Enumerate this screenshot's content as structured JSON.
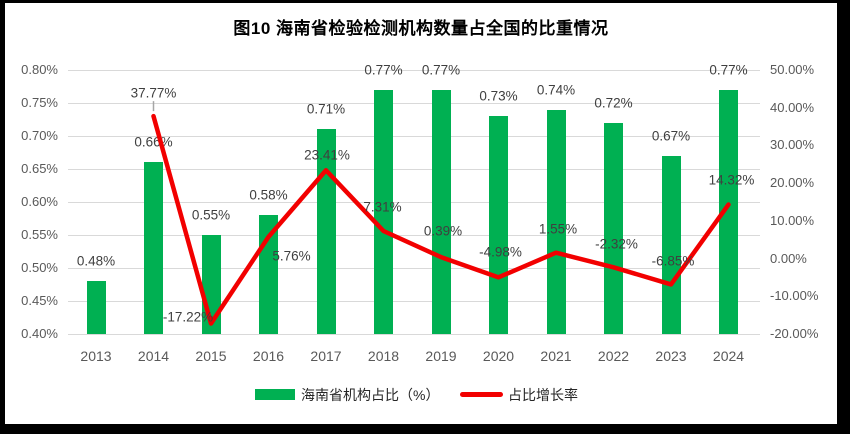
{
  "title": "图10  海南省检验检测机构数量占全国的比重情况",
  "legend": {
    "items": [
      {
        "label": "海南省机构占比（%）",
        "type": "bar"
      },
      {
        "label": "占比增长率",
        "type": "line"
      }
    ]
  },
  "colors": {
    "bar": "#00b052",
    "line": "#f20000",
    "grid": "#d9d9d9",
    "axis_text": "#595959",
    "data_label": "#3f3f3f",
    "leader": "#a6a6a6",
    "frame": "#000000"
  },
  "chart_data": {
    "type": "bar+line",
    "title": "图10  海南省检验检测机构数量占全国的比重情况",
    "categories": [
      "2013",
      "2014",
      "2015",
      "2016",
      "2017",
      "2018",
      "2019",
      "2020",
      "2021",
      "2022",
      "2023",
      "2024"
    ],
    "series": [
      {
        "name": "海南省机构占比（%）",
        "type": "bar",
        "axis": "left",
        "values": [
          0.48,
          0.66,
          0.55,
          0.58,
          0.71,
          0.77,
          0.77,
          0.73,
          0.74,
          0.72,
          0.67,
          0.77
        ],
        "labels": [
          "0.48%",
          "0.66%",
          "0.55%",
          "0.58%",
          "0.71%",
          "0.77%",
          "0.77%",
          "0.73%",
          "0.74%",
          "0.72%",
          "0.67%",
          "0.77%"
        ]
      },
      {
        "name": "占比增长率",
        "type": "line",
        "axis": "right",
        "values": [
          null,
          37.77,
          -17.22,
          5.76,
          23.41,
          7.31,
          0.39,
          -4.98,
          1.55,
          -2.32,
          -6.85,
          14.32
        ],
        "labels": [
          null,
          "37.77%",
          "-17.22%",
          "5.76%",
          "23.41%",
          "7.31%",
          "0.39%",
          "-4.98%",
          "1.55%",
          "-2.32%",
          "-6.85%",
          "14.32%"
        ]
      }
    ],
    "left_axis": {
      "min": 0.4,
      "max": 0.8,
      "step": 0.05,
      "ticks": [
        "0.80%",
        "0.75%",
        "0.70%",
        "0.65%",
        "0.60%",
        "0.55%",
        "0.50%",
        "0.45%",
        "0.40%"
      ]
    },
    "right_axis": {
      "min": -20,
      "max": 50,
      "step": 10,
      "ticks": [
        "50.00%",
        "40.00%",
        "30.00%",
        "20.00%",
        "10.00%",
        "0.00%",
        "-10.00%",
        "-20.00%"
      ]
    },
    "grid": true,
    "legend_position": "bottom"
  }
}
